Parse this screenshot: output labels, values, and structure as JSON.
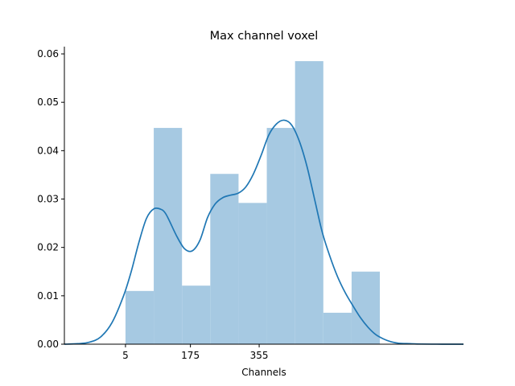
{
  "chart_data": {
    "type": "bar",
    "title": "Max channel voxel",
    "xlabel": "Channels",
    "ylabel": "",
    "xlim": [
      -155,
      890
    ],
    "ylim": [
      0,
      0.0615
    ],
    "xticks": [
      5,
      175,
      355
    ],
    "xtick_labels": [
      "5",
      "175",
      "355"
    ],
    "yticks": [
      0,
      0.01,
      0.02,
      0.03,
      0.04,
      0.05,
      0.06
    ],
    "ytick_labels": [
      "0.00",
      "0.01",
      "0.02",
      "0.03",
      "0.04",
      "0.05",
      "0.06"
    ],
    "grid": false,
    "histogram": {
      "bin_width": 74,
      "bins": [
        {
          "x0": 5,
          "x1": 79,
          "density": 0.011
        },
        {
          "x0": 79,
          "x1": 153,
          "density": 0.0447
        },
        {
          "x0": 153,
          "x1": 227,
          "density": 0.0121
        },
        {
          "x0": 227,
          "x1": 301,
          "density": 0.0352
        },
        {
          "x0": 301,
          "x1": 375,
          "density": 0.0292
        },
        {
          "x0": 375,
          "x1": 449,
          "density": 0.0447
        },
        {
          "x0": 449,
          "x1": 523,
          "density": 0.0585
        },
        {
          "x0": 523,
          "x1": 597,
          "density": 0.0065
        },
        {
          "x0": 597,
          "x1": 671,
          "density": 0.015
        }
      ]
    },
    "kde": {
      "x": [
        -155,
        -120,
        -90,
        -60,
        -30,
        0,
        20,
        40,
        60,
        80,
        100,
        110,
        120,
        140,
        160,
        180,
        200,
        220,
        240,
        260,
        280,
        300,
        320,
        340,
        360,
        380,
        400,
        420,
        440,
        460,
        480,
        500,
        520,
        540,
        560,
        580,
        600,
        620,
        640,
        660,
        680,
        700,
        720,
        750,
        780,
        820,
        860,
        890
      ],
      "y": [
        0.0,
        0.0001,
        0.0004,
        0.0015,
        0.0045,
        0.01,
        0.015,
        0.021,
        0.026,
        0.028,
        0.0278,
        0.027,
        0.0255,
        0.0222,
        0.0197,
        0.0193,
        0.0215,
        0.0262,
        0.029,
        0.0303,
        0.0308,
        0.0312,
        0.0325,
        0.0352,
        0.039,
        0.0432,
        0.0455,
        0.0463,
        0.0453,
        0.042,
        0.0368,
        0.03,
        0.0232,
        0.0182,
        0.014,
        0.0107,
        0.008,
        0.0055,
        0.0035,
        0.002,
        0.0011,
        0.0005,
        0.0002,
        0.0001,
        3e-05,
        1e-05,
        0.0,
        0.0
      ]
    },
    "colors": {
      "bars": "#a6c9e2",
      "kde_line": "#1f77b4"
    }
  }
}
